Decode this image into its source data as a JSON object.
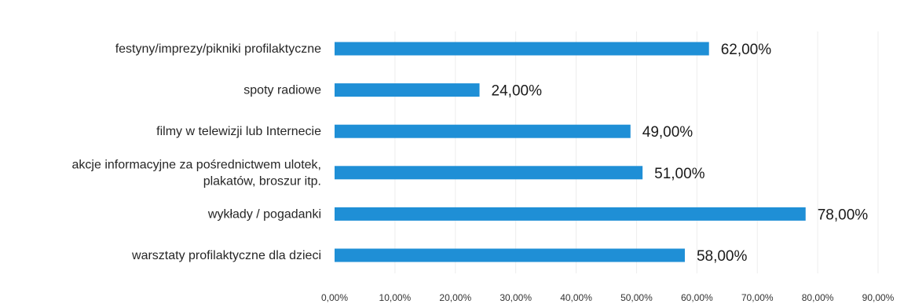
{
  "chart_data": {
    "type": "bar",
    "orientation": "horizontal",
    "categories": [
      [
        "festyny/imprezy/pikniki profilaktyczne"
      ],
      [
        "spoty radiowe"
      ],
      [
        "filmy w telewizji lub Internecie"
      ],
      [
        "akcje informacyjne za pośrednictwem  ulotek,",
        "plakatów, broszur itp."
      ],
      [
        "wykłady / pogadanki"
      ],
      [
        "warsztaty profilaktyczne dla dzieci"
      ]
    ],
    "values": [
      62,
      24,
      49,
      51,
      78,
      58
    ],
    "data_labels": [
      "62,00%",
      "24,00%",
      "49,00%",
      "51,00%",
      "78,00%",
      "58,00%"
    ],
    "x_ticks": [
      "0,00%",
      "10,00%",
      "20,00%",
      "30,00%",
      "40,00%",
      "50,00%",
      "60,00%",
      "70,00%",
      "80,00%",
      "90,00%"
    ],
    "xlim": [
      0,
      90
    ],
    "bar_color": "#1f8fd6",
    "grid": true,
    "grid_color": "#eeeeee",
    "legend": "none"
  }
}
